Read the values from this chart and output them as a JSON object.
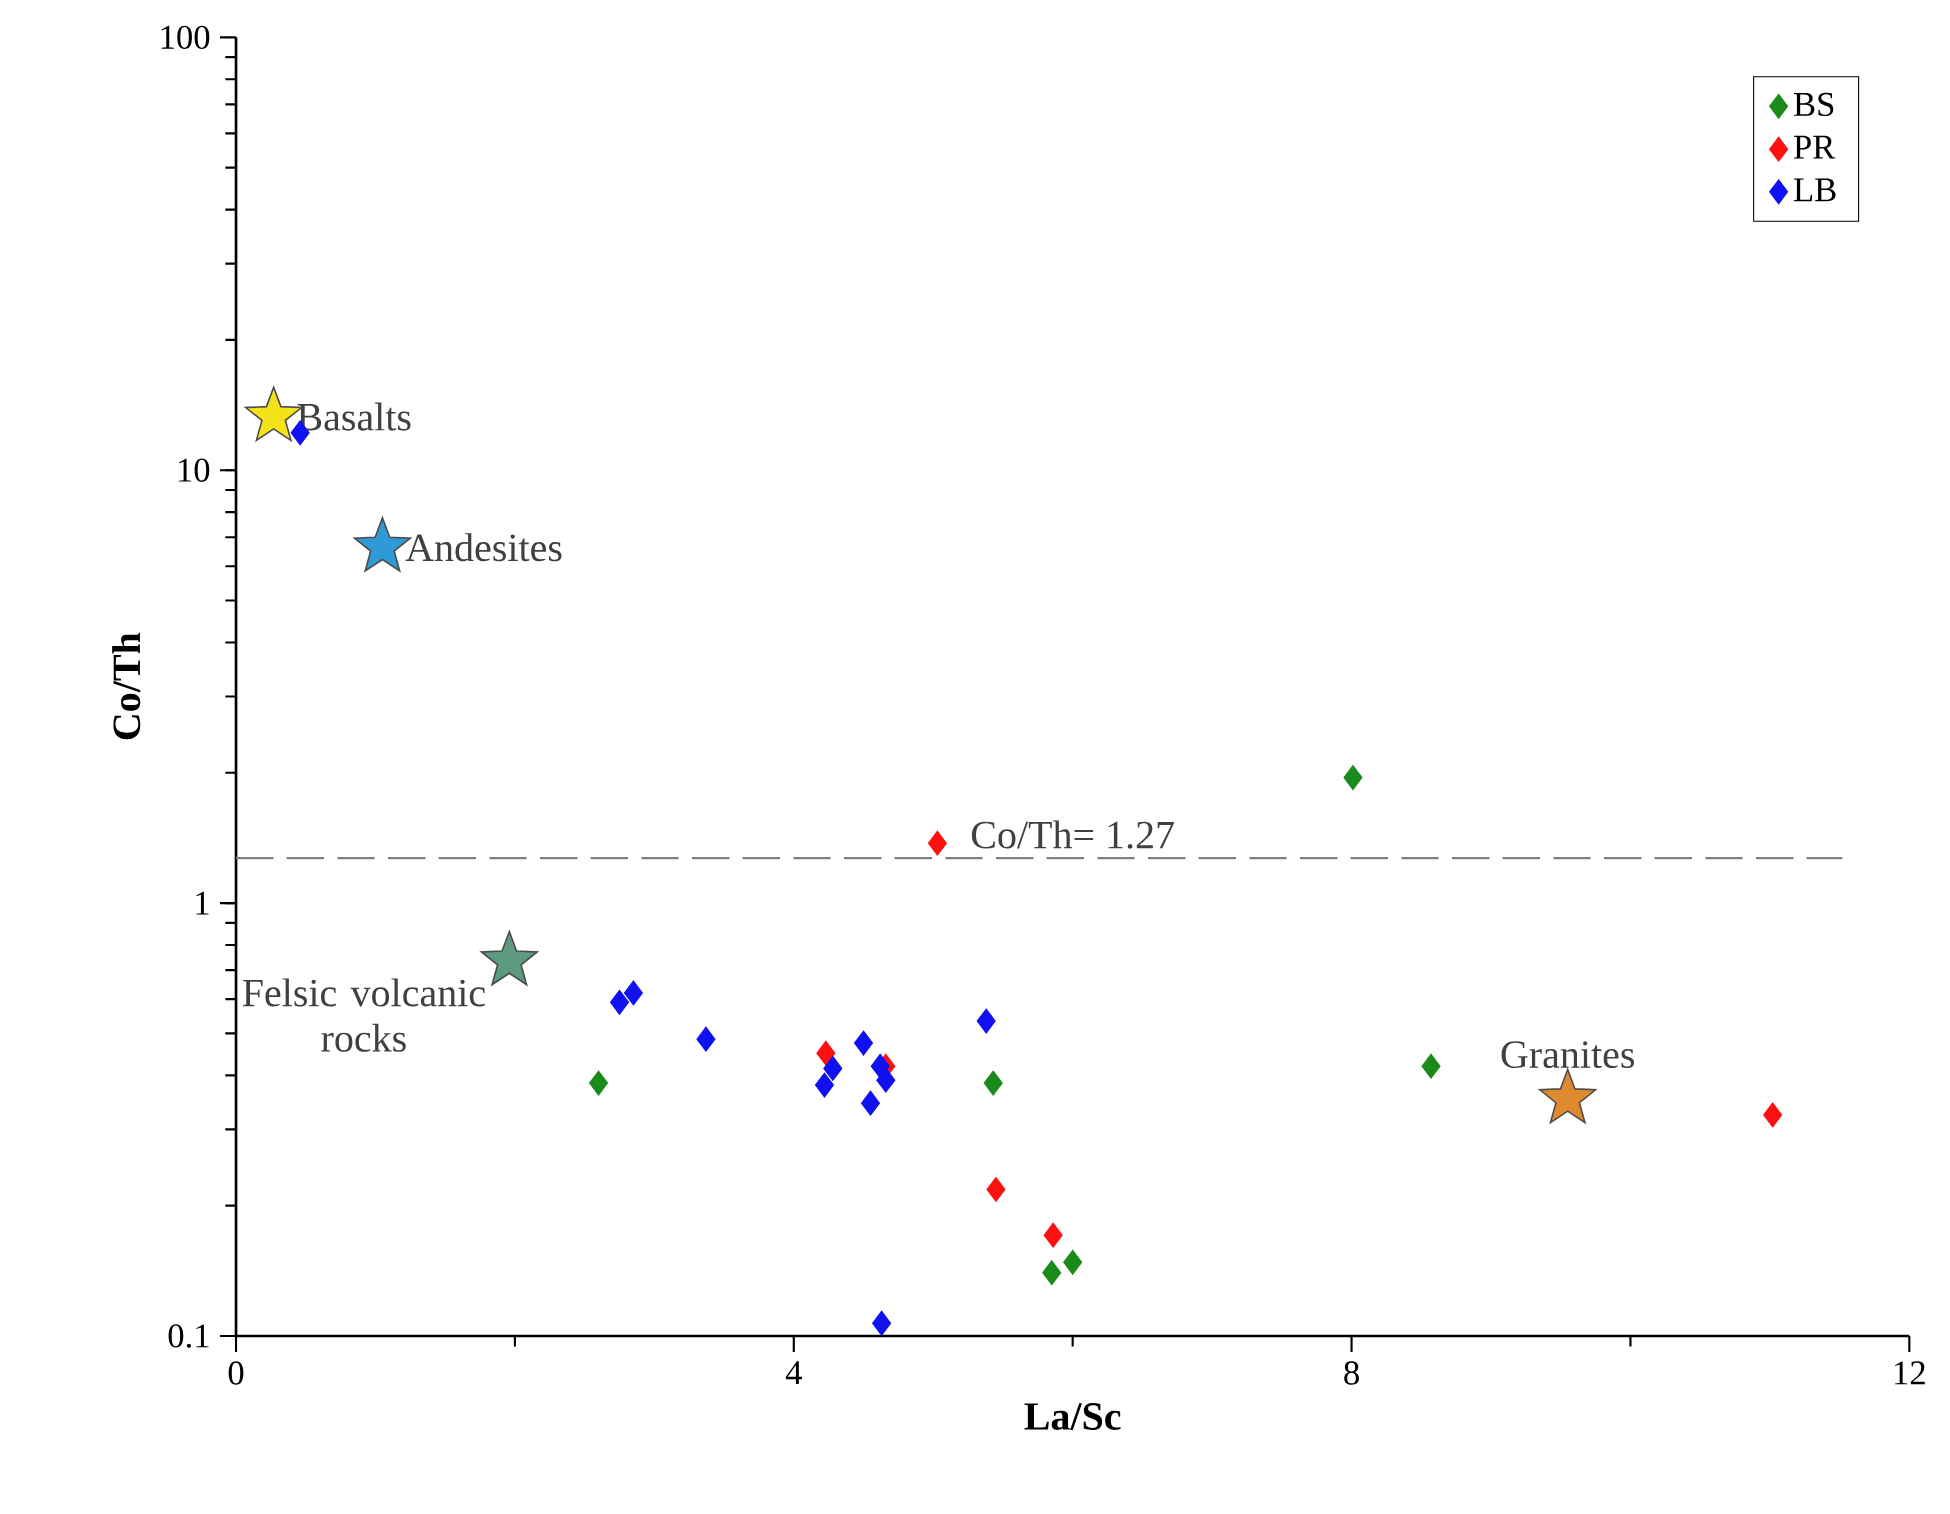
{
  "chart_data": {
    "type": "scatter",
    "xlabel": "La/Sc",
    "ylabel": "Co/Th",
    "log": "y",
    "xlim": [
      0,
      12
    ],
    "xticks": [
      0,
      4,
      8,
      12
    ],
    "ylim": [
      0.1,
      100
    ],
    "yticks": [
      0.1,
      1,
      10,
      100
    ],
    "grid": false,
    "legend": "top right",
    "marker": "diamond",
    "ref_lines": [
      {
        "axis": "y",
        "value": 1.27,
        "label": "Co/Th= 1.27",
        "color": "#808080",
        "line_style": "dashed"
      }
    ],
    "series": [
      {
        "name": "BS",
        "color": "#1a8a1a",
        "x": [
          8.01,
          2.6,
          5.43,
          8.57,
          5.85,
          6.0
        ],
        "values": [
          1.95,
          0.384,
          0.384,
          0.42,
          0.14,
          0.148
        ]
      },
      {
        "name": "PR",
        "color": "#ff1010",
        "x": [
          5.03,
          4.23,
          4.66,
          5.45,
          5.86,
          11.02
        ],
        "values": [
          1.375,
          0.45,
          0.42,
          0.218,
          0.171,
          0.324
        ]
      },
      {
        "name": "LB",
        "color": "#1010f0",
        "x": [
          0.46,
          2.75,
          2.85,
          3.37,
          4.22,
          4.28,
          4.5,
          4.62,
          4.66,
          4.55,
          5.38,
          4.63
        ],
        "values": [
          12.2,
          0.59,
          0.62,
          0.485,
          0.38,
          0.415,
          0.475,
          0.42,
          0.39,
          0.345,
          0.534,
          0.107
        ]
      },
      {
        "name": "Basalts",
        "color": "#f5e31a",
        "marker": "star",
        "x": [
          0.27
        ],
        "values": [
          13.3
        ]
      },
      {
        "name": "Andesites",
        "color": "#2e9bd6",
        "marker": "star",
        "x": [
          1.05
        ],
        "values": [
          6.64
        ]
      },
      {
        "name": "Felsic volcanic rocks",
        "color": "#5e9a80",
        "marker": "star",
        "x": [
          1.96
        ],
        "values": [
          0.735
        ]
      },
      {
        "name": "Granites",
        "color": "#e08a30",
        "marker": "star",
        "x": [
          9.55
        ],
        "values": [
          0.353
        ]
      }
    ]
  }
}
